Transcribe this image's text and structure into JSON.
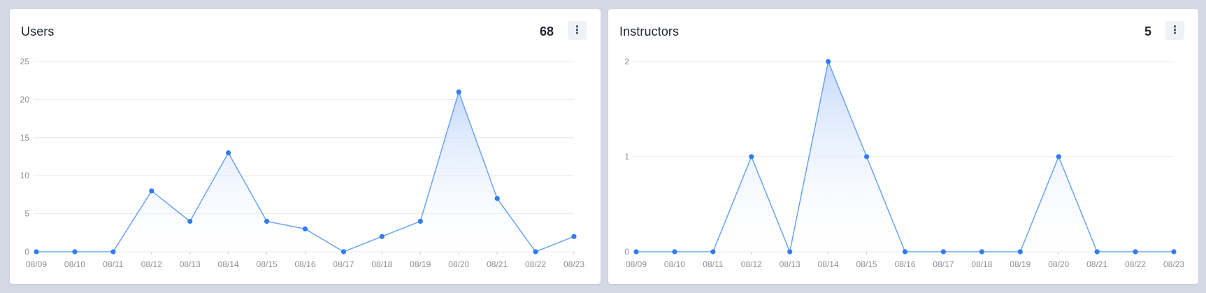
{
  "cards": [
    {
      "title": "Users",
      "count": "68",
      "menu_icon": "more-vertical-icon"
    },
    {
      "title": "Instructors",
      "count": "5",
      "menu_icon": "more-vertical-icon"
    }
  ],
  "colors": {
    "line": "#6aa3f5",
    "point": "#2f7cf6",
    "fill_top": "#c5dafb",
    "grid": "#e5e7eb",
    "tick": "#8a8f98"
  },
  "chart_data": [
    {
      "type": "area",
      "title": "Users",
      "categories": [
        "08/09",
        "08/10",
        "08/11",
        "08/12",
        "08/13",
        "08/14",
        "08/15",
        "08/16",
        "08/17",
        "08/18",
        "08/19",
        "08/20",
        "08/21",
        "08/22",
        "08/23"
      ],
      "series": [
        {
          "values": [
            0,
            0,
            0,
            8,
            4,
            13,
            4,
            3,
            0,
            2,
            4,
            21,
            7,
            0,
            2
          ]
        }
      ],
      "ylim": [
        0,
        25
      ],
      "yticks": [
        0,
        5,
        10,
        15,
        20,
        25
      ],
      "grid": true,
      "xlabel": "",
      "ylabel": ""
    },
    {
      "type": "area",
      "title": "Instructors",
      "categories": [
        "08/09",
        "08/10",
        "08/11",
        "08/12",
        "08/13",
        "08/14",
        "08/15",
        "08/16",
        "08/17",
        "08/18",
        "08/19",
        "08/20",
        "08/21",
        "08/22",
        "08/23"
      ],
      "series": [
        {
          "values": [
            0,
            0,
            0,
            1,
            0,
            2,
            1,
            0,
            0,
            0,
            0,
            1,
            0,
            0,
            0
          ]
        }
      ],
      "ylim": [
        0,
        2
      ],
      "yticks": [
        0,
        1,
        2
      ],
      "grid": true,
      "xlabel": "",
      "ylabel": ""
    }
  ]
}
